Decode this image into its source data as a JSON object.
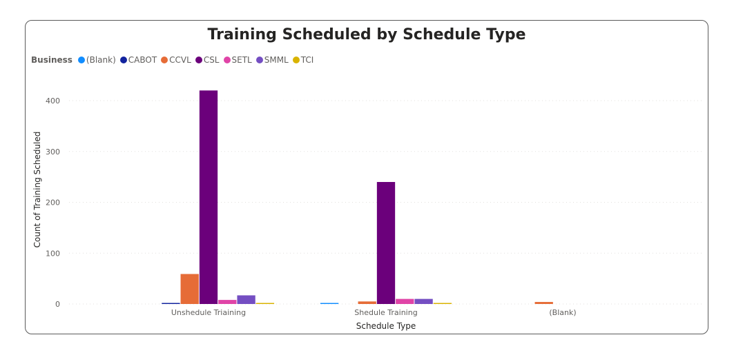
{
  "chart_data": {
    "type": "bar",
    "title": "Training Scheduled by Schedule Type",
    "xlabel": "Schedule Type",
    "ylabel": "Count of Training Scheduled",
    "legend_title": "Business",
    "legend_position": "top-left",
    "grid": true,
    "ylim": [
      0,
      430
    ],
    "yticks": [
      0,
      100,
      200,
      300,
      400
    ],
    "categories": [
      "Unshedule Triaining",
      "Shedule Training",
      "(Blank)"
    ],
    "series": [
      {
        "name": "(Blank)",
        "color": "#118DFF",
        "values": [
          0,
          1,
          0
        ]
      },
      {
        "name": "CABOT",
        "color": "#12239E",
        "values": [
          1,
          0,
          0
        ]
      },
      {
        "name": "CCVL",
        "color": "#E66C37",
        "values": [
          59,
          5,
          4
        ]
      },
      {
        "name": "CSL",
        "color": "#6B007B",
        "values": [
          420,
          240,
          0
        ]
      },
      {
        "name": "SETL",
        "color": "#E044A7",
        "values": [
          8,
          10,
          0
        ]
      },
      {
        "name": "SMML",
        "color": "#744EC2",
        "values": [
          17,
          10,
          0
        ]
      },
      {
        "name": "TCI",
        "color": "#D9B300",
        "values": [
          2,
          2,
          0
        ]
      }
    ]
  }
}
